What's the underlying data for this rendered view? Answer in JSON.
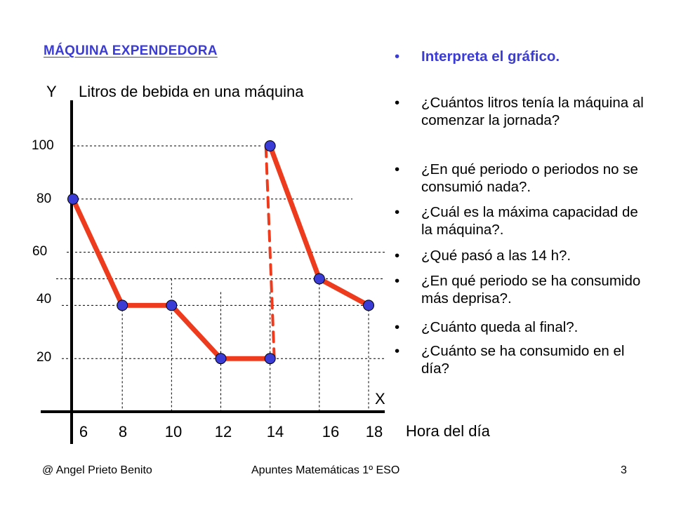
{
  "slide": {
    "title": "MÁQUINA EXPENDEDORA",
    "questions": [
      "Interpreta el gráfico.",
      "¿Cuántos litros tenía la máquina al comenzar la jornada?",
      "¿En qué periodo o periodos no se consumió nada?.",
      "¿Cuál es la máxima capacidad de la máquina?.",
      "¿Qué pasó a las 14 h?.",
      "¿En qué periodo se ha consumido más deprisa?.",
      "¿Cuánto queda al final?.",
      "¿Cuánto se ha consumido en el día?"
    ],
    "footer": {
      "author": "@  Angel Prieto Benito",
      "course": "Apuntes Matemáticas 1º ESO",
      "page": "3"
    }
  },
  "chart_data": {
    "type": "line",
    "ylabel_letter": "Y",
    "ylabel": "Litros de bebida en una máquina",
    "xlabel_letter": "X",
    "xlabel": "Hora del día",
    "x_ticks": [
      "6",
      "8",
      "10",
      "12",
      "14",
      "16",
      "18"
    ],
    "y_ticks": [
      "20",
      "40",
      "60",
      "80",
      "100"
    ],
    "series": [
      {
        "points": [
          [
            6,
            80
          ],
          [
            8,
            40
          ],
          [
            10,
            40
          ],
          [
            12,
            20
          ],
          [
            14,
            20
          ],
          [
            14,
            100
          ],
          [
            16,
            50
          ],
          [
            18,
            40
          ]
        ]
      }
    ],
    "refill_segment": {
      "x": 14,
      "from": 20,
      "to": 100,
      "style": "dashed"
    },
    "colors": {
      "line": "#ee3b1e",
      "marker": "#3b3bd6",
      "title": "#3b3bd6",
      "axis": "#000000"
    },
    "grid": "dashed guide lines"
  }
}
